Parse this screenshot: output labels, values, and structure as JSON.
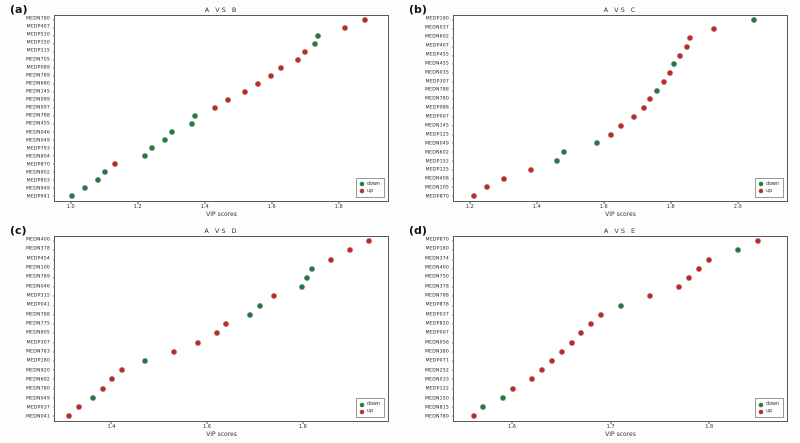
{
  "chart_data": [
    {
      "type": "scatter",
      "panel_tag": "(a)",
      "title": "A VS B",
      "xlabel": "VIP scores",
      "xlim": [
        0.95,
        1.95
      ],
      "xticks": [
        1.0,
        1.2,
        1.4,
        1.6,
        1.8
      ],
      "colors": {
        "down": "#1e7d3e",
        "up": "#c62828"
      },
      "legend": [
        {
          "label": "down",
          "group": "down"
        },
        {
          "label": "up",
          "group": "up"
        }
      ],
      "legend_position": "bottom-right",
      "grid": false,
      "points": [
        {
          "label": "MEDN780",
          "value": 1.88,
          "group": "up"
        },
        {
          "label": "MEDP407",
          "value": 1.82,
          "group": "up"
        },
        {
          "label": "MEDP510",
          "value": 1.74,
          "group": "down"
        },
        {
          "label": "MEDP150",
          "value": 1.73,
          "group": "down"
        },
        {
          "label": "MEDP115",
          "value": 1.7,
          "group": "up"
        },
        {
          "label": "MEDN705",
          "value": 1.68,
          "group": "up"
        },
        {
          "label": "MEDP089",
          "value": 1.63,
          "group": "up"
        },
        {
          "label": "MEDN789",
          "value": 1.6,
          "group": "up"
        },
        {
          "label": "MEDN680",
          "value": 1.56,
          "group": "up"
        },
        {
          "label": "MEDN145",
          "value": 1.52,
          "group": "up"
        },
        {
          "label": "MEDN089",
          "value": 1.47,
          "group": "up"
        },
        {
          "label": "MEDN097",
          "value": 1.43,
          "group": "up"
        },
        {
          "label": "MEDN788",
          "value": 1.37,
          "group": "down"
        },
        {
          "label": "MEDN455",
          "value": 1.36,
          "group": "down"
        },
        {
          "label": "MEDN046",
          "value": 1.3,
          "group": "down"
        },
        {
          "label": "MEDN049",
          "value": 1.28,
          "group": "down"
        },
        {
          "label": "MEDP793",
          "value": 1.24,
          "group": "down"
        },
        {
          "label": "MEDN804",
          "value": 1.22,
          "group": "down"
        },
        {
          "label": "MEDP870",
          "value": 1.13,
          "group": "up"
        },
        {
          "label": "MEDN802",
          "value": 1.1,
          "group": "down"
        },
        {
          "label": "MEDP803",
          "value": 1.08,
          "group": "down"
        },
        {
          "label": "MEDN949",
          "value": 1.04,
          "group": "down"
        },
        {
          "label": "MEDP941",
          "value": 1.0,
          "group": "down"
        }
      ]
    },
    {
      "type": "scatter",
      "panel_tag": "(b)",
      "title": "A VS C",
      "xlabel": "VIP scores",
      "xlim": [
        1.15,
        2.15
      ],
      "xticks": [
        1.2,
        1.4,
        1.6,
        1.8,
        2.0
      ],
      "colors": {
        "down": "#1e7d3e",
        "up": "#c62828"
      },
      "legend": [
        {
          "label": "down",
          "group": "down"
        },
        {
          "label": "up",
          "group": "up"
        }
      ],
      "legend_position": "bottom-right",
      "grid": false,
      "points": [
        {
          "label": "MEDP180",
          "value": 2.05,
          "group": "down"
        },
        {
          "label": "MEDN037",
          "value": 1.93,
          "group": "up"
        },
        {
          "label": "MEDN602",
          "value": 1.86,
          "group": "up"
        },
        {
          "label": "MEDP407",
          "value": 1.85,
          "group": "up"
        },
        {
          "label": "MEDP455",
          "value": 1.83,
          "group": "up"
        },
        {
          "label": "MEDN455",
          "value": 1.81,
          "group": "down"
        },
        {
          "label": "MEDN035",
          "value": 1.8,
          "group": "up"
        },
        {
          "label": "MEDP307",
          "value": 1.78,
          "group": "up"
        },
        {
          "label": "MEDN788",
          "value": 1.76,
          "group": "down"
        },
        {
          "label": "MEDN780",
          "value": 1.74,
          "group": "up"
        },
        {
          "label": "MEDP088",
          "value": 1.72,
          "group": "up"
        },
        {
          "label": "MEDP007",
          "value": 1.69,
          "group": "up"
        },
        {
          "label": "MEDN145",
          "value": 1.65,
          "group": "up"
        },
        {
          "label": "MEDP125",
          "value": 1.62,
          "group": "up"
        },
        {
          "label": "MEDN049",
          "value": 1.58,
          "group": "down"
        },
        {
          "label": "MEDN602",
          "value": 1.48,
          "group": "down"
        },
        {
          "label": "MEDP152",
          "value": 1.46,
          "group": "down"
        },
        {
          "label": "MEDP125",
          "value": 1.38,
          "group": "up"
        },
        {
          "label": "MEDN408",
          "value": 1.3,
          "group": "up"
        },
        {
          "label": "MEDN105",
          "value": 1.25,
          "group": "up"
        },
        {
          "label": "MEDP870",
          "value": 1.21,
          "group": "up"
        }
      ]
    },
    {
      "type": "scatter",
      "panel_tag": "(c)",
      "title": "A VS D",
      "xlabel": "VIP scores",
      "xlim": [
        1.28,
        1.98
      ],
      "xticks": [
        1.4,
        1.6,
        1.8
      ],
      "colors": {
        "down": "#1e7d3e",
        "up": "#c62828"
      },
      "legend": [
        {
          "label": "down",
          "group": "down"
        },
        {
          "label": "up",
          "group": "up"
        }
      ],
      "legend_position": "bottom-right",
      "grid": false,
      "points": [
        {
          "label": "MEDN400",
          "value": 1.94,
          "group": "up"
        },
        {
          "label": "MEDN378",
          "value": 1.9,
          "group": "up"
        },
        {
          "label": "MEDP454",
          "value": 1.86,
          "group": "up"
        },
        {
          "label": "MEDN100",
          "value": 1.82,
          "group": "down"
        },
        {
          "label": "MEDN789",
          "value": 1.81,
          "group": "down"
        },
        {
          "label": "MEDN046",
          "value": 1.8,
          "group": "down"
        },
        {
          "label": "MEDP315",
          "value": 1.74,
          "group": "up"
        },
        {
          "label": "MEDP041",
          "value": 1.71,
          "group": "down"
        },
        {
          "label": "MEDN788",
          "value": 1.69,
          "group": "down"
        },
        {
          "label": "MEDN775",
          "value": 1.64,
          "group": "up"
        },
        {
          "label": "MEDN805",
          "value": 1.62,
          "group": "up"
        },
        {
          "label": "MEDP307",
          "value": 1.58,
          "group": "up"
        },
        {
          "label": "MEDN783",
          "value": 1.53,
          "group": "up"
        },
        {
          "label": "MEDP180",
          "value": 1.47,
          "group": "down"
        },
        {
          "label": "MEDN920",
          "value": 1.42,
          "group": "up"
        },
        {
          "label": "MEDN602",
          "value": 1.4,
          "group": "up"
        },
        {
          "label": "MEDN780",
          "value": 1.38,
          "group": "up"
        },
        {
          "label": "MEDN049",
          "value": 1.36,
          "group": "down"
        },
        {
          "label": "MEDP037",
          "value": 1.33,
          "group": "up"
        },
        {
          "label": "MEDN041",
          "value": 1.31,
          "group": "up"
        }
      ]
    },
    {
      "type": "scatter",
      "panel_tag": "(d)",
      "title": "A VS E",
      "xlabel": "VIP scores",
      "xlim": [
        1.54,
        1.88
      ],
      "xticks": [
        1.6,
        1.7,
        1.8
      ],
      "colors": {
        "down": "#1e7d3e",
        "up": "#c62828"
      },
      "legend": [
        {
          "label": "down",
          "group": "down"
        },
        {
          "label": "up",
          "group": "up"
        }
      ],
      "legend_position": "bottom-right",
      "grid": false,
      "points": [
        {
          "label": "MEDP870",
          "value": 1.85,
          "group": "up"
        },
        {
          "label": "MEDP180",
          "value": 1.83,
          "group": "down"
        },
        {
          "label": "MEDN374",
          "value": 1.8,
          "group": "up"
        },
        {
          "label": "MEDN400",
          "value": 1.79,
          "group": "up"
        },
        {
          "label": "MEDN750",
          "value": 1.78,
          "group": "up"
        },
        {
          "label": "MEDN378",
          "value": 1.77,
          "group": "up"
        },
        {
          "label": "MEDN788",
          "value": 1.74,
          "group": "up"
        },
        {
          "label": "MEDP878",
          "value": 1.71,
          "group": "down"
        },
        {
          "label": "MEDP037",
          "value": 1.69,
          "group": "up"
        },
        {
          "label": "MEDP820",
          "value": 1.68,
          "group": "up"
        },
        {
          "label": "MEDP007",
          "value": 1.67,
          "group": "up"
        },
        {
          "label": "MEDN056",
          "value": 1.66,
          "group": "up"
        },
        {
          "label": "MEDN380",
          "value": 1.65,
          "group": "up"
        },
        {
          "label": "MEDP071",
          "value": 1.64,
          "group": "up"
        },
        {
          "label": "MEDN252",
          "value": 1.63,
          "group": "up"
        },
        {
          "label": "MEDN033",
          "value": 1.62,
          "group": "up"
        },
        {
          "label": "MEDP122",
          "value": 1.6,
          "group": "up"
        },
        {
          "label": "MEDN150",
          "value": 1.59,
          "group": "down"
        },
        {
          "label": "MEDN815",
          "value": 1.57,
          "group": "down"
        },
        {
          "label": "MEDN780",
          "value": 1.56,
          "group": "up"
        }
      ]
    }
  ]
}
